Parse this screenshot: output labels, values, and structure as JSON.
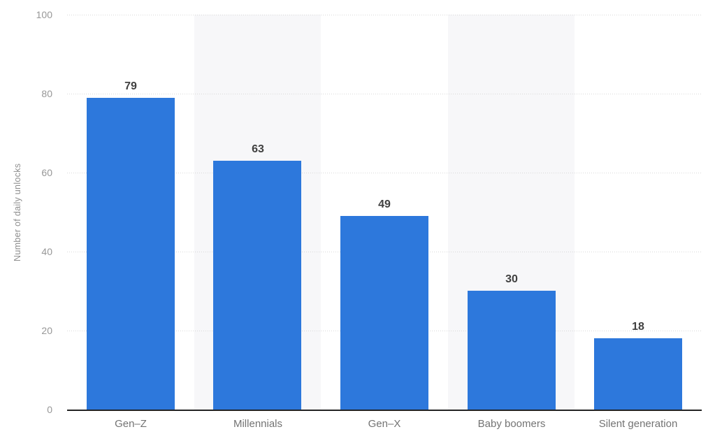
{
  "chart_data": {
    "type": "bar",
    "title": "",
    "xlabel": "",
    "ylabel": "Number of daily unlocks",
    "categories": [
      "Gen–Z",
      "Millennials",
      "Gen–X",
      "Baby boomers",
      "Silent generation"
    ],
    "values": [
      79,
      63,
      49,
      30,
      18
    ],
    "ylim": [
      0,
      100
    ],
    "yticks": [
      0,
      20,
      40,
      60,
      80,
      100
    ],
    "grid": "horizontal-dotted",
    "legend": "none",
    "colors": {
      "bar": "#2d78dc",
      "alternating_band": "#f7f7f9",
      "grid_line": "#d8d8d8",
      "axis_line": "#232323",
      "tick_label": "#979797",
      "category_label": "#737373",
      "value_label": "#404040",
      "axis_title": "#8e8e8e",
      "background": "#ffffff"
    }
  }
}
